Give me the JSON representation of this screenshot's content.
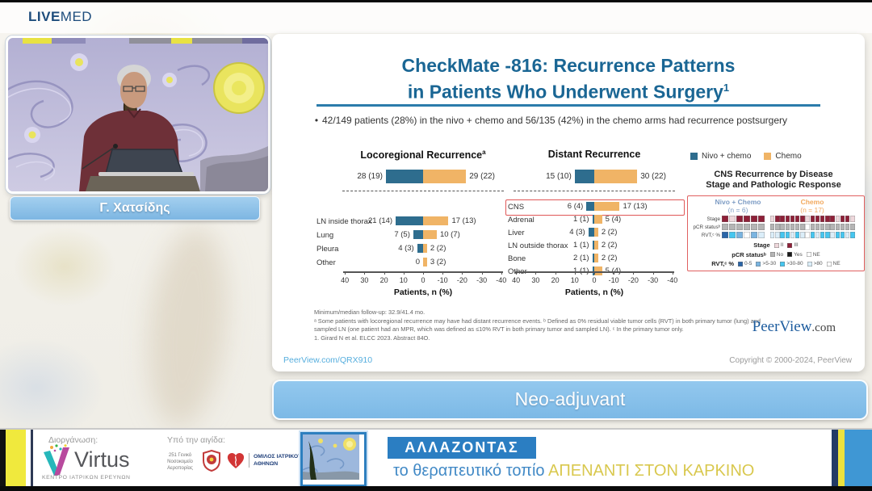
{
  "brand": {
    "live": "LIVE",
    "med": "MED"
  },
  "speaker": {
    "name": "Γ. Χατσίδης"
  },
  "slide": {
    "title_line1": "CheckMate -816: Recurrence Patterns",
    "title_line2": "in Patients Who Underwent Surgery",
    "title_sup": "1",
    "bullet_marker": "•",
    "bullet": "42/149 patients (28%) in the nivo + chemo and 56/135 (42%) in the chemo arms had recurrence postsurgery",
    "footnote_line1": "Minimum/median follow-up: 32.9/41.4 mo.",
    "footnote_line2": "ᵃ Some patients with locoregional recurrence may have had distant recurrence events. ᵇ Defined as 0% residual viable tumor cells (RVT) in both primary tumor (lung) and sampled LN (one patient had an MPR, which was defined as ≤10% RVT in both primary tumor and sampled LN). ᶜ In the primary tumor only.",
    "footnote_line3": "1. Girard N et al. ELCC 2023. Abstract 84O.",
    "link": "PeerView.com/QRX910",
    "copyright": "Copyright © 2000-2024, PeerView",
    "peerview_name": "PeerView",
    "peerview_tld": ".com"
  },
  "legend": {
    "items": [
      {
        "label": "Nivo + chemo",
        "color": "#2e6d8e"
      },
      {
        "label": "Chemo",
        "color": "#f0b466"
      }
    ]
  },
  "chart_data": [
    {
      "type": "bar",
      "title": "Locoregional Recurrence",
      "title_sup": "a",
      "orientation": "horizontal-diverging",
      "series": [
        "Nivo + chemo",
        "Chemo"
      ],
      "overall": {
        "left_label": "28 (19)",
        "right_label": "29 (22)",
        "left_pct": 19,
        "right_pct": 22
      },
      "rows": [
        {
          "category": "LN inside thorax",
          "left_label": "21 (14)",
          "right_label": "17 (13)",
          "left_pct": 14,
          "right_pct": 13,
          "highlight": false
        },
        {
          "category": "Lung",
          "left_label": "7 (5)",
          "right_label": "10 (7)",
          "left_pct": 5,
          "right_pct": 7,
          "highlight": false
        },
        {
          "category": "Pleura",
          "left_label": "4 (3)",
          "right_label": "2 (2)",
          "left_pct": 3,
          "right_pct": 2,
          "highlight": false
        },
        {
          "category": "Other",
          "left_label": "0",
          "right_label": "3 (2)",
          "left_pct": 0,
          "right_pct": 2,
          "highlight": false
        }
      ],
      "x_ticks": [
        "40",
        "30",
        "20",
        "10",
        "0",
        "-10",
        "-20",
        "-30",
        "-40"
      ],
      "xlim": [
        40,
        -40
      ],
      "xlabel": "Patients, n (%)"
    },
    {
      "type": "bar",
      "title": "Distant Recurrence",
      "title_sup": "",
      "orientation": "horizontal-diverging",
      "series": [
        "Nivo + chemo",
        "Chemo"
      ],
      "overall": {
        "left_label": "15 (10)",
        "right_label": "30 (22)",
        "left_pct": 10,
        "right_pct": 22
      },
      "rows": [
        {
          "category": "CNS",
          "left_label": "6 (4)",
          "right_label": "17 (13)",
          "left_pct": 4,
          "right_pct": 13,
          "highlight": true
        },
        {
          "category": "Adrenal",
          "left_label": "1 (1)",
          "right_label": "5 (4)",
          "left_pct": 1,
          "right_pct": 4,
          "highlight": false
        },
        {
          "category": "Liver",
          "left_label": "4 (3)",
          "right_label": "2 (2)",
          "left_pct": 3,
          "right_pct": 2,
          "highlight": false
        },
        {
          "category": "LN outside thorax",
          "left_label": "1 (1)",
          "right_label": "2 (2)",
          "left_pct": 1,
          "right_pct": 2,
          "highlight": false
        },
        {
          "category": "Bone",
          "left_label": "2 (1)",
          "right_label": "2 (2)",
          "left_pct": 1,
          "right_pct": 2,
          "highlight": false
        },
        {
          "category": "Other",
          "left_label": "1 (1)",
          "right_label": "5 (4)",
          "left_pct": 1,
          "right_pct": 4,
          "highlight": false
        }
      ],
      "x_ticks": [
        "40",
        "30",
        "20",
        "10",
        "0",
        "-10",
        "-20",
        "-30",
        "-40"
      ],
      "xlim": [
        40,
        -40
      ],
      "xlabel": "Patients, n (%)"
    }
  ],
  "cns_panel": {
    "title_line1": "CNS Recurrence by Disease",
    "title_line2": "Stage and Pathologic Response",
    "row_labels": [
      "Stage",
      "pCR statusᵇ",
      "RVT,ᶜ %"
    ],
    "groups": [
      {
        "name": "Nivo + Chemo",
        "n_label": "(n = 6)",
        "color": "#7d9cc4",
        "cells": {
          "stage": [
            "#8e2038",
            "#eed7db",
            "#8e2038",
            "#8e2038",
            "#8e2038",
            "#8e2038"
          ],
          "pcr": [
            "#b5b5b5",
            "#b5b5b5",
            "#b5b5b5",
            "#b5b5b5",
            "#b5b5b5",
            "#b5b5b5"
          ],
          "rvt": [
            "#2a65a8",
            "#45c6f0",
            "#7ab4e0",
            "#ffffff",
            "#7ab4e0",
            "#dbeef9"
          ]
        }
      },
      {
        "name": "Chemo",
        "n_label": "(n = 17)",
        "color": "#f2a95e",
        "cells": {
          "stage": [
            "#eed7db",
            "#8e2038",
            "#8e2038",
            "#8e2038",
            "#8e2038",
            "#8e2038",
            "#8e2038",
            "#eed7db",
            "#8e2038",
            "#8e2038",
            "#8e2038",
            "#8e2038",
            "#8e2038",
            "#eed7db",
            "#8e2038",
            "#8e2038",
            "#eed7db"
          ],
          "pcr": [
            "#b5b5b5",
            "#b5b5b5",
            "#b5b5b5",
            "#b5b5b5",
            "#b5b5b5",
            "#b5b5b5",
            "#b5b5b5",
            "#ffffff",
            "#b5b5b5",
            "#b5b5b5",
            "#b5b5b5",
            "#b5b5b5",
            "#b5b5b5",
            "#b5b5b5",
            "#b5b5b5",
            "#b5b5b5",
            "#b5b5b5"
          ],
          "rvt": [
            "#dbeef9",
            "#dbeef9",
            "#45c6f0",
            "#45c6f0",
            "#dbeef9",
            "#45c6f0",
            "#dbeef9",
            "#ffffff",
            "#45c6f0",
            "#dbeef9",
            "#45c6f0",
            "#45c6f0",
            "#dbeef9",
            "#45c6f0",
            "#45c6f0",
            "#dbeef9",
            "#45c6f0"
          ]
        }
      }
    ],
    "legends": [
      {
        "label": "Stage",
        "items": [
          {
            "label": "II",
            "color": "#eed7db"
          },
          {
            "label": "III",
            "color": "#8e2038"
          }
        ]
      },
      {
        "label": "pCR statusᵇ",
        "items": [
          {
            "label": "No",
            "color": "#b5b5b5"
          },
          {
            "label": "Yes",
            "color": "#1a1a1a"
          },
          {
            "label": "NE",
            "color": "#ffffff"
          }
        ]
      },
      {
        "label": "RVT,ᶜ %",
        "items": [
          {
            "label": "0-5",
            "color": "#2a65a8"
          },
          {
            "label": ">5-30",
            "color": "#7ab4e0"
          },
          {
            "label": ">30-80",
            "color": "#45c6f0"
          },
          {
            "label": ">80",
            "color": "#dbeef9"
          },
          {
            "label": "NE",
            "color": "#ffffff"
          }
        ]
      }
    ]
  },
  "neo_button": {
    "label": "Neo-adjuvant"
  },
  "footer": {
    "organizer_label": "Διοργάνωση:",
    "auspices_label": "Υπό την αιγίδα:",
    "virtus_name": "Virtus",
    "virtus_subtitle": "ΚΕΝΤΡΟ ΙΑΤΡΙΚΩΝ ΕΡΕΥΝΩΝ",
    "hospital_line1": "251 Γενικό Νοσοκομείο",
    "hospital_line2": "Αεροπορίας",
    "club_line1": "ΟΜΙΛΟΣ ΙΑΤΡΙΚΟΥ",
    "club_line2": "ΑΘΗΝΩΝ",
    "campaign_word": "ΑΛΛΑΖΟΝΤΑΣ",
    "campaign_blue": "το θεραπευτικό τοπίο ",
    "campaign_yellow": "ΑΠΕΝΑΝΤΙ ΣΤΟΝ ΚΑΡΚΙΝΟ"
  }
}
